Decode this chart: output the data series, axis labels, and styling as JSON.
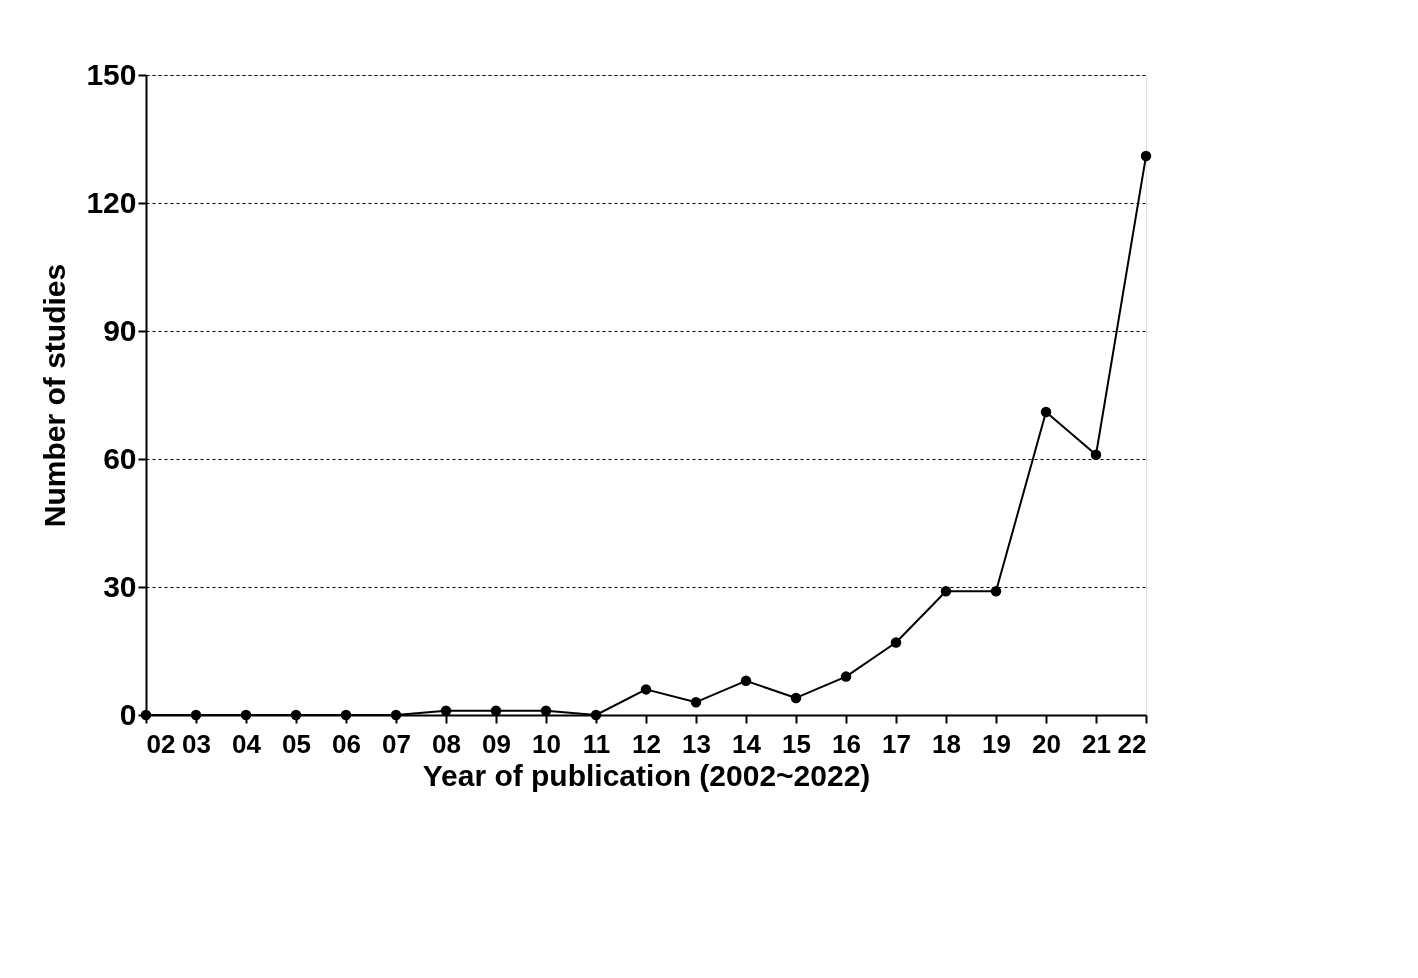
{
  "chart_data": {
    "type": "line",
    "xlabel": "Year of publication (2002~2022)",
    "ylabel": "Number of studies",
    "categories": [
      "02",
      "03",
      "04",
      "05",
      "06",
      "07",
      "08",
      "09",
      "10",
      "11",
      "12",
      "13",
      "14",
      "15",
      "16",
      "17",
      "18",
      "19",
      "20",
      "21",
      "22"
    ],
    "series": [
      {
        "color": "#000000",
        "values": [
          0,
          0,
          0,
          0,
          0,
          0,
          1,
          1,
          1,
          0,
          6,
          3,
          8,
          4,
          9,
          17,
          29,
          29,
          71,
          61,
          131
        ]
      }
    ],
    "ylim": [
      0,
      150
    ],
    "yticks": [
      0,
      30,
      60,
      90,
      120,
      150
    ],
    "grid": "y",
    "marker": "circle",
    "line_style": "solid"
  }
}
